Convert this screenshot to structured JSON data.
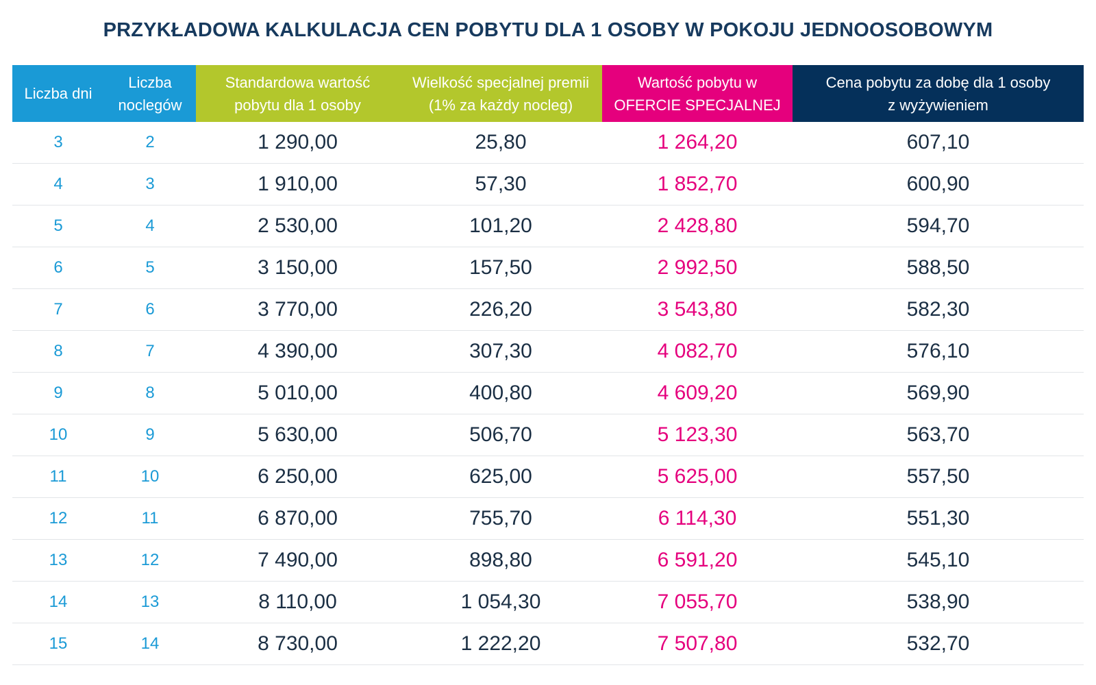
{
  "title": "PRZYKŁADOWA KALKULACJA CEN POBYTU DLA 1 OSOBY W POKOJU JEDNOOSOBOWYM",
  "headers": {
    "days": "Liczba dni",
    "nights_line1": "Liczba",
    "nights_line2": "noclegów",
    "standard_line1": "Standardowa wartość",
    "standard_line2": "pobytu dla 1 osoby",
    "bonus_line1": "Wielkość specjalnej premii",
    "bonus_line2": "(1% za każdy nocleg)",
    "offer_line1": "Wartość pobytu w",
    "offer_line2": "OFERCIE SPECJALNEJ",
    "daily_line1": "Cena pobytu za dobę dla 1 osoby",
    "daily_line2": "z wyżywieniem"
  },
  "colors": {
    "blue": "#1a9ad6",
    "green": "#b3c72c",
    "magenta": "#e5007d",
    "navy": "#05305a",
    "title": "#173a5e"
  },
  "rows": [
    {
      "days": "3",
      "nights": "2",
      "standard": "1 290,00",
      "bonus": "25,80",
      "offer": "1 264,20",
      "daily": "607,10"
    },
    {
      "days": "4",
      "nights": "3",
      "standard": "1 910,00",
      "bonus": "57,30",
      "offer": "1 852,70",
      "daily": "600,90"
    },
    {
      "days": "5",
      "nights": "4",
      "standard": "2 530,00",
      "bonus": "101,20",
      "offer": "2 428,80",
      "daily": "594,70"
    },
    {
      "days": "6",
      "nights": "5",
      "standard": "3 150,00",
      "bonus": "157,50",
      "offer": "2 992,50",
      "daily": "588,50"
    },
    {
      "days": "7",
      "nights": "6",
      "standard": "3 770,00",
      "bonus": "226,20",
      "offer": "3 543,80",
      "daily": "582,30"
    },
    {
      "days": "8",
      "nights": "7",
      "standard": "4 390,00",
      "bonus": "307,30",
      "offer": "4 082,70",
      "daily": "576,10"
    },
    {
      "days": "9",
      "nights": "8",
      "standard": "5 010,00",
      "bonus": "400,80",
      "offer": "4 609,20",
      "daily": "569,90"
    },
    {
      "days": "10",
      "nights": "9",
      "standard": "5 630,00",
      "bonus": "506,70",
      "offer": "5 123,30",
      "daily": "563,70"
    },
    {
      "days": "11",
      "nights": "10",
      "standard": "6 250,00",
      "bonus": "625,00",
      "offer": "5 625,00",
      "daily": "557,50"
    },
    {
      "days": "12",
      "nights": "11",
      "standard": "6 870,00",
      "bonus": "755,70",
      "offer": "6 114,30",
      "daily": "551,30"
    },
    {
      "days": "13",
      "nights": "12",
      "standard": "7 490,00",
      "bonus": "898,80",
      "offer": "6 591,20",
      "daily": "545,10"
    },
    {
      "days": "14",
      "nights": "13",
      "standard": "8 110,00",
      "bonus": "1 054,30",
      "offer": "7 055,70",
      "daily": "538,90"
    },
    {
      "days": "15",
      "nights": "14",
      "standard": "8 730,00",
      "bonus": "1 222,20",
      "offer": "7 507,80",
      "daily": "532,70"
    }
  ]
}
